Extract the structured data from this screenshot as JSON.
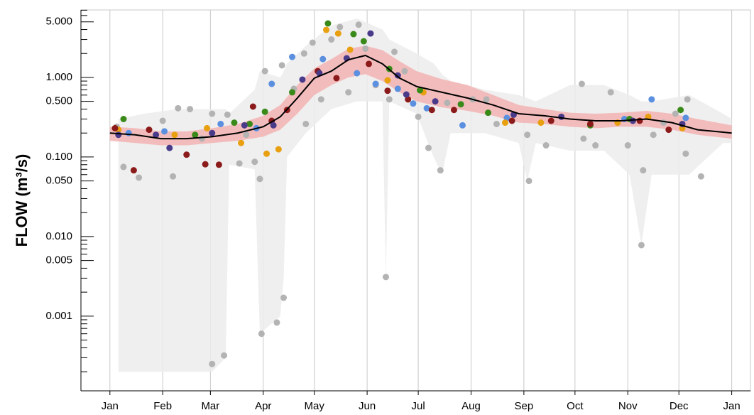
{
  "chart_data": {
    "type": "line",
    "y_label": "FLOW (m³/s)",
    "log_y": true,
    "grid_x": true,
    "xlim": [
      -17,
      376
    ],
    "ylim": [
      0.000115,
      7.05
    ],
    "xticks": [
      {
        "value": 0,
        "label": "Jan"
      },
      {
        "value": 31,
        "label": "Feb"
      },
      {
        "value": 59,
        "label": "Mar"
      },
      {
        "value": 90,
        "label": "Apr"
      },
      {
        "value": 120,
        "label": "May"
      },
      {
        "value": 151,
        "label": "Jun"
      },
      {
        "value": 181,
        "label": "Jul"
      },
      {
        "value": 212,
        "label": "Aug"
      },
      {
        "value": 243,
        "label": "Sep"
      },
      {
        "value": 273,
        "label": "Oct"
      },
      {
        "value": 304,
        "label": "Nov"
      },
      {
        "value": 334,
        "label": "Dec"
      },
      {
        "value": 365,
        "label": "Jan"
      }
    ],
    "yticks": [
      {
        "value": 5,
        "label": "5.000"
      },
      {
        "value": 1,
        "label": "1.000"
      },
      {
        "value": 0.5,
        "label": "0.500"
      },
      {
        "value": 0.1,
        "label": "0.100"
      },
      {
        "value": 0.05,
        "label": "0.050"
      },
      {
        "value": 0.01,
        "label": "0.010"
      },
      {
        "value": 0.005,
        "label": "0.005"
      },
      {
        "value": 0.001,
        "label": "0.001"
      }
    ],
    "yminorticks": [
      0.0002,
      0.0003,
      0.0004,
      0.0005,
      0.0006,
      0.0007,
      0.0008,
      0.0009,
      0.002,
      0.003,
      0.004,
      0.006,
      0.007,
      0.008,
      0.009,
      0.02,
      0.03,
      0.04,
      0.06,
      0.07,
      0.08,
      0.09,
      0.2,
      0.3,
      0.4,
      0.6,
      0.7,
      0.8,
      0.9,
      2,
      3,
      4,
      6,
      7
    ],
    "series": [
      {
        "type": "area",
        "color": "#ececec",
        "x": [
          5,
          20,
          40,
          60,
          68,
          70,
          85,
          88,
          100,
          102,
          104,
          115,
          130,
          145,
          160,
          162,
          164,
          180,
          190,
          195,
          200,
          220,
          240,
          245,
          250,
          270,
          290,
          305,
          312,
          318,
          340,
          360,
          365
        ],
        "lower": [
          0.0002,
          0.0002,
          0.0002,
          0.0002,
          0.0003,
          0.08,
          0.07,
          0.0006,
          0.001,
          0.003,
          0.1,
          0.2,
          0.4,
          0.5,
          0.5,
          0.003,
          0.5,
          0.35,
          0.1,
          0.06,
          0.2,
          0.2,
          0.15,
          0.05,
          0.15,
          0.12,
          0.12,
          0.06,
          0.008,
          0.06,
          0.06,
          0.15,
          0.15
        ],
        "upper": [
          0.3,
          0.35,
          0.4,
          0.4,
          0.4,
          0.35,
          0.7,
          1.2,
          1.0,
          1.2,
          1.5,
          2.5,
          4.5,
          5.5,
          4.0,
          3.5,
          3.0,
          2.0,
          1.5,
          1.1,
          0.9,
          0.7,
          0.6,
          0.55,
          0.5,
          0.8,
          0.8,
          0.6,
          0.5,
          0.5,
          0.6,
          0.35,
          0.3
        ]
      },
      {
        "type": "area",
        "color": "#f3b3b3",
        "x": [
          0,
          15,
          30,
          45,
          60,
          75,
          90,
          100,
          110,
          120,
          130,
          140,
          150,
          160,
          170,
          180,
          195,
          210,
          225,
          240,
          255,
          270,
          285,
          300,
          315,
          330,
          345,
          365
        ],
        "lower": [
          0.16,
          0.15,
          0.14,
          0.14,
          0.15,
          0.16,
          0.18,
          0.22,
          0.35,
          0.6,
          0.8,
          1.0,
          1.1,
          0.9,
          0.65,
          0.5,
          0.42,
          0.38,
          0.33,
          0.27,
          0.26,
          0.24,
          0.23,
          0.24,
          0.24,
          0.22,
          0.19,
          0.17
        ],
        "upper": [
          0.24,
          0.23,
          0.21,
          0.21,
          0.23,
          0.26,
          0.33,
          0.45,
          0.8,
          1.3,
          1.7,
          2.3,
          2.5,
          2.2,
          1.6,
          1.2,
          0.95,
          0.8,
          0.6,
          0.45,
          0.4,
          0.36,
          0.35,
          0.36,
          0.38,
          0.35,
          0.3,
          0.25
        ]
      },
      {
        "type": "scatter",
        "color": "#b3b3b3",
        "x": [
          4,
          8,
          17,
          31,
          37,
          40,
          47,
          54,
          60,
          60,
          67,
          69,
          76,
          80,
          85,
          88,
          89,
          91,
          98,
          102,
          101,
          108,
          114,
          115,
          119,
          124,
          130,
          135,
          140,
          146,
          150,
          156,
          162,
          164,
          167,
          173,
          181,
          187,
          194,
          198,
          213,
          221,
          227,
          245,
          246,
          256,
          277,
          278,
          285,
          294,
          304,
          312,
          313,
          319,
          325,
          332,
          338,
          339,
          347
        ],
        "y": [
          0.24,
          0.075,
          0.055,
          0.285,
          0.057,
          0.41,
          0.4,
          0.17,
          0.35,
          0.00025,
          0.00032,
          0.34,
          0.083,
          0.19,
          0.087,
          0.053,
          0.0006,
          1.2,
          0.00083,
          0.0017,
          1.42,
          0.72,
          2.0,
          0.26,
          2.74,
          0.53,
          3.0,
          4.3,
          0.65,
          4.6,
          2.3,
          0.8,
          0.0031,
          0.53,
          2.1,
          1.2,
          0.32,
          0.13,
          0.068,
          0.48,
          0.53,
          0.53,
          0.26,
          0.19,
          0.05,
          0.14,
          0.83,
          0.17,
          0.14,
          0.65,
          0.14,
          0.0078,
          0.068,
          0.19,
          0.27,
          0.35,
          0.11,
          0.53,
          0.057
        ]
      },
      {
        "type": "scatter",
        "color": "#5b8fe0",
        "x": [
          11,
          32,
          65,
          86,
          95,
          107,
          125,
          145,
          156,
          169,
          178,
          186,
          207,
          233,
          302,
          318,
          338
        ],
        "y": [
          0.2,
          0.21,
          0.26,
          0.23,
          0.83,
          1.81,
          1.7,
          1.13,
          0.83,
          0.72,
          0.47,
          0.41,
          0.25,
          0.31,
          0.3,
          0.53,
          0.31
        ]
      },
      {
        "type": "scatter",
        "color": "#e8a010",
        "x": [
          5,
          38,
          57,
          77,
          92,
          99,
          127,
          134,
          141,
          163,
          184,
          232,
          253,
          298,
          316,
          336
        ],
        "y": [
          0.22,
          0.19,
          0.23,
          0.15,
          0.11,
          0.125,
          3.96,
          3.57,
          2.23,
          0.92,
          0.65,
          0.27,
          0.27,
          0.27,
          0.32,
          0.23
        ]
      },
      {
        "type": "scatter",
        "color": "#3a8a1a",
        "x": [
          8,
          50,
          73,
          82,
          91,
          107,
          128,
          143,
          149,
          164,
          182,
          206,
          222,
          282,
          305,
          335
        ],
        "y": [
          0.3,
          0.19,
          0.27,
          0.26,
          0.37,
          0.65,
          4.77,
          3.5,
          2.85,
          1.28,
          0.69,
          0.46,
          0.36,
          0.25,
          0.3,
          0.39
        ]
      },
      {
        "type": "scatter",
        "color": "#8b1a1a",
        "x": [
          14,
          3,
          23,
          45,
          56,
          64,
          84,
          95,
          104,
          122,
          133,
          152,
          163,
          175,
          189,
          202,
          236,
          259,
          282,
          311,
          328
        ],
        "y": [
          0.068,
          0.23,
          0.22,
          0.107,
          0.081,
          0.08,
          0.43,
          0.285,
          0.39,
          1.2,
          0.98,
          1.48,
          0.68,
          0.53,
          0.39,
          0.39,
          0.285,
          0.285,
          0.26,
          0.285,
          0.22
        ]
      },
      {
        "type": "scatter",
        "color": "#4a3a8a",
        "x": [
          5,
          27,
          35,
          60,
          79,
          96,
          113,
          123,
          139,
          153,
          169,
          174,
          191,
          237,
          265,
          307,
          336
        ],
        "y": [
          0.19,
          0.19,
          0.13,
          0.2,
          0.25,
          0.25,
          0.94,
          1.13,
          1.74,
          3.57,
          1.06,
          0.61,
          0.5,
          0.34,
          0.32,
          0.285,
          0.26
        ]
      },
      {
        "type": "line",
        "color": "#000000",
        "x": [
          0,
          15,
          30,
          45,
          60,
          75,
          90,
          100,
          110,
          120,
          130,
          140,
          150,
          160,
          170,
          180,
          195,
          210,
          225,
          240,
          255,
          270,
          285,
          300,
          315,
          330,
          345,
          365
        ],
        "y": [
          0.2,
          0.19,
          0.17,
          0.17,
          0.18,
          0.2,
          0.24,
          0.32,
          0.55,
          0.98,
          1.2,
          1.67,
          1.89,
          1.48,
          0.98,
          0.77,
          0.65,
          0.55,
          0.45,
          0.35,
          0.33,
          0.3,
          0.285,
          0.285,
          0.3,
          0.27,
          0.22,
          0.2
        ]
      }
    ]
  }
}
